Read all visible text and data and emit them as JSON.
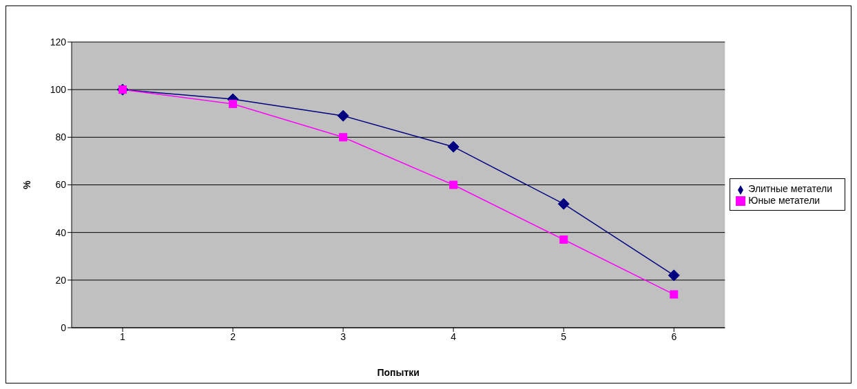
{
  "chart_data": {
    "type": "line",
    "xlabel": "Попытки",
    "ylabel": "%",
    "categories": [
      "1",
      "2",
      "3",
      "4",
      "5",
      "6"
    ],
    "series": [
      {
        "name": "Элитные метатели",
        "color": "#000080",
        "marker": "diamond",
        "values": [
          100,
          96,
          89,
          76,
          52,
          22
        ]
      },
      {
        "name": "Юные метатели",
        "color": "#ff00ff",
        "marker": "square",
        "values": [
          100,
          94,
          80,
          60,
          37,
          14
        ]
      }
    ],
    "ylim": [
      0,
      120
    ],
    "yticks": [
      0,
      20,
      40,
      60,
      80,
      100,
      120
    ],
    "grid": "y",
    "legend": "right"
  }
}
